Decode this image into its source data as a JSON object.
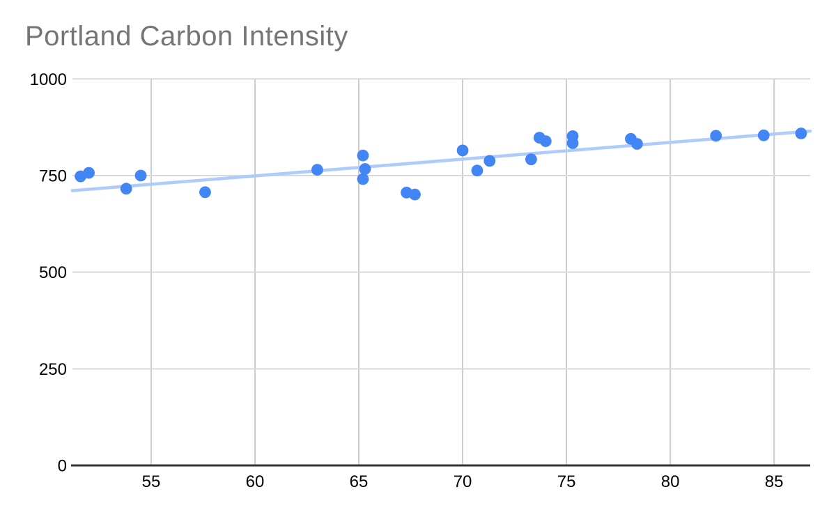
{
  "chart_data": {
    "type": "scatter",
    "title": "Portland Carbon Intensity",
    "xlabel": "",
    "ylabel": "",
    "x_ticks": [
      55,
      60,
      65,
      70,
      75,
      80,
      85
    ],
    "y_ticks": [
      0,
      250,
      500,
      750,
      1000
    ],
    "xlim": [
      51.21,
      86.74
    ],
    "ylim": [
      0,
      1000
    ],
    "grid": true,
    "legend_position": "none",
    "series": [
      {
        "name": "Carbon Intensity",
        "points": [
          [
            51.6,
            748
          ],
          [
            52.0,
            757
          ],
          [
            53.8,
            716
          ],
          [
            54.5,
            750
          ],
          [
            57.6,
            707
          ],
          [
            63.0,
            765
          ],
          [
            65.2,
            802
          ],
          [
            65.3,
            767
          ],
          [
            65.2,
            741
          ],
          [
            67.3,
            706
          ],
          [
            67.7,
            701
          ],
          [
            70.0,
            815
          ],
          [
            70.7,
            763
          ],
          [
            71.3,
            788
          ],
          [
            73.3,
            792
          ],
          [
            73.7,
            848
          ],
          [
            74.0,
            839
          ],
          [
            75.3,
            852
          ],
          [
            75.3,
            834
          ],
          [
            78.1,
            845
          ],
          [
            78.4,
            832
          ],
          [
            82.2,
            853
          ],
          [
            84.5,
            854
          ],
          [
            86.3,
            859
          ]
        ]
      }
    ],
    "trendline": {
      "x1": 51.2,
      "y1": 711,
      "x2": 86.74,
      "y2": 865
    },
    "colors": {
      "point": "#4285f4",
      "trendline": "#aecbfa",
      "title": "#757575",
      "grid_vertical": "#cccccc",
      "grid_horizontal": "#d9d9d9",
      "axis_line": "#333333",
      "tick_label": "#000000",
      "background": "#ffffff"
    }
  }
}
